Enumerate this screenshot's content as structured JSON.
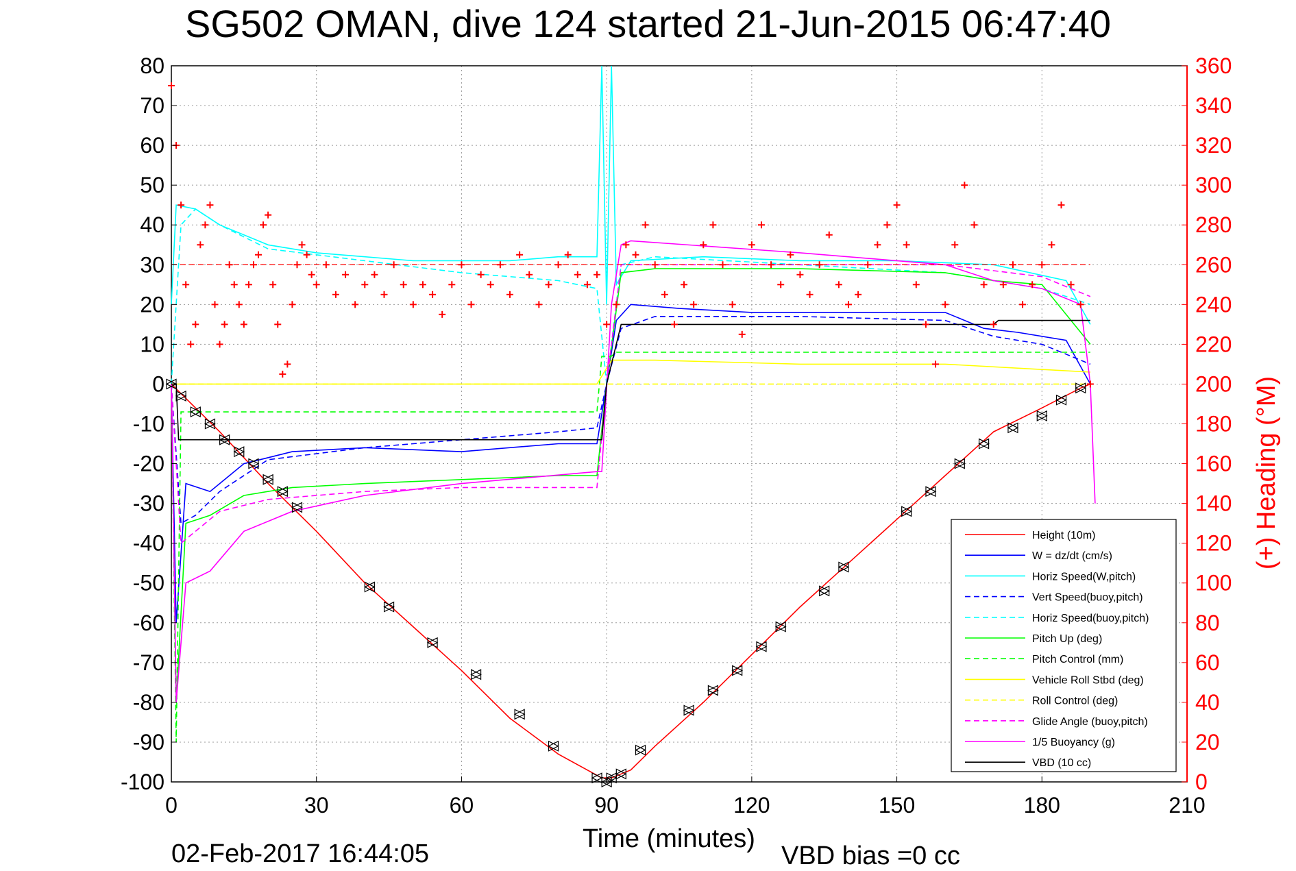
{
  "title": "SG502 OMAN, dive 124 started 21-Jun-2015 06:47:40",
  "footer": {
    "timestamp": "02-Feb-2017 16:44:05",
    "vbd_bias": "VBD bias =0 cc"
  },
  "colors": {
    "heading": "#ff0000",
    "height": "#ff0000",
    "w": "#0000ff",
    "horiz_speed": "#00ffff",
    "pitch": "#00ff00",
    "roll": "#ffff00",
    "glide": "#ff00ff",
    "vbd": "#000000"
  },
  "chart_data": {
    "type": "line",
    "title": "SG502 OMAN, dive 124 started 21-Jun-2015 06:47:40",
    "xlabel": "Time (minutes)",
    "ylabel": "",
    "y2label": "(+) Heading (°M)",
    "xlim": [
      0,
      210
    ],
    "ylim": [
      -100,
      80
    ],
    "y2lim": [
      0,
      360
    ],
    "xticks": [
      0,
      30,
      60,
      90,
      120,
      150,
      180,
      210
    ],
    "yticks": [
      80,
      70,
      60,
      50,
      40,
      30,
      20,
      10,
      0,
      -10,
      -20,
      -30,
      -40,
      -50,
      -60,
      -70,
      -80,
      -90,
      -100
    ],
    "y2ticks": [
      360,
      340,
      320,
      300,
      280,
      260,
      240,
      220,
      200,
      180,
      160,
      140,
      120,
      100,
      80,
      60,
      40,
      20,
      0
    ],
    "grid": true,
    "legend_position": "bottom-right",
    "series": [
      {
        "name": "Height (10m)",
        "style": "solid",
        "color": "#ff0000",
        "x": [
          0,
          10,
          20,
          30,
          40,
          50,
          60,
          70,
          80,
          89,
          91,
          95,
          100,
          110,
          120,
          130,
          140,
          150,
          160,
          170,
          180,
          188,
          190
        ],
        "y": [
          0,
          -12,
          -25,
          -37,
          -50,
          -61,
          -72,
          -84,
          -93,
          -99,
          -99,
          -97,
          -91,
          -80,
          -68,
          -56,
          -45,
          -34,
          -23,
          -12,
          -6,
          -1,
          0
        ]
      },
      {
        "name": "W = dz/dt (cm/s)",
        "style": "solid",
        "color": "#0000ff",
        "x": [
          0,
          1,
          3,
          8,
          15,
          25,
          40,
          60,
          80,
          88,
          90,
          92,
          95,
          105,
          120,
          140,
          160,
          168,
          175,
          185,
          190
        ],
        "y": [
          0,
          -60,
          -25,
          -27,
          -20,
          -17,
          -16,
          -17,
          -15,
          -15,
          0,
          16,
          20,
          19,
          18,
          18,
          18,
          14,
          13,
          11,
          0
        ]
      },
      {
        "name": "Horiz Speed(W,pitch)",
        "style": "solid",
        "color": "#00ffff",
        "x": [
          0,
          1,
          5,
          10,
          20,
          30,
          50,
          70,
          80,
          88,
          89,
          90,
          91,
          92,
          95,
          110,
          130,
          150,
          170,
          185,
          190
        ],
        "y": [
          20,
          45,
          44,
          40,
          35,
          33,
          31,
          31,
          32,
          32,
          80,
          20,
          80,
          25,
          31,
          32,
          31,
          31,
          30,
          26,
          15
        ]
      },
      {
        "name": "Vert Speed(buoy,pitch)",
        "style": "dashed",
        "color": "#0000ff",
        "x": [
          0,
          2,
          5,
          10,
          20,
          40,
          60,
          80,
          88,
          90,
          93,
          100,
          130,
          160,
          170,
          180,
          190
        ],
        "y": [
          0,
          -35,
          -33,
          -27,
          -19,
          -16,
          -14,
          -12,
          -11,
          0,
          14,
          17,
          17,
          16,
          12,
          10,
          5
        ]
      },
      {
        "name": "Horiz Speed(buoy,pitch)",
        "style": "dashed",
        "color": "#00ffff",
        "x": [
          0,
          2,
          5,
          10,
          20,
          40,
          60,
          80,
          88,
          90,
          93,
          100,
          130,
          160,
          170,
          180,
          190
        ],
        "y": [
          0,
          40,
          44,
          40,
          34,
          31,
          28,
          26,
          24,
          0,
          30,
          32,
          30,
          28,
          26,
          24,
          20
        ]
      },
      {
        "name": "Pitch Up (deg)",
        "style": "solid",
        "color": "#00ff00",
        "x": [
          0,
          1,
          3,
          8,
          15,
          25,
          40,
          60,
          80,
          88,
          90,
          93,
          100,
          130,
          160,
          170,
          180,
          190
        ],
        "y": [
          0,
          -80,
          -35,
          -33,
          -28,
          -26,
          -25,
          -24,
          -23,
          -23,
          0,
          28,
          29,
          29,
          28,
          26,
          25,
          10
        ]
      },
      {
        "name": "Pitch Control (mm)",
        "style": "dashed",
        "color": "#00ff00",
        "x": [
          0,
          1,
          2,
          30,
          88,
          89,
          91,
          92,
          190
        ],
        "y": [
          0,
          -90,
          -7,
          -7,
          -7,
          7,
          7,
          8,
          8
        ]
      },
      {
        "name": "Vehicle Roll Stbd (deg)",
        "style": "solid",
        "color": "#ffff00",
        "x": [
          0,
          5,
          10,
          30,
          60,
          88,
          91,
          100,
          130,
          160,
          190
        ],
        "y": [
          0,
          0,
          0,
          0,
          0,
          0,
          6,
          6,
          5,
          5,
          3
        ]
      },
      {
        "name": "Roll Control (deg)",
        "style": "dashed",
        "color": "#ffff00",
        "x": [
          0,
          5,
          30,
          60,
          88,
          91,
          130,
          190
        ],
        "y": [
          0,
          0,
          0,
          0,
          0,
          0,
          0,
          0
        ]
      },
      {
        "name": "Glide Angle (buoy,pitch)",
        "style": "dashed",
        "color": "#ff00ff",
        "x": [
          0,
          2,
          10,
          20,
          40,
          60,
          88,
          90,
          93,
          130,
          160,
          180,
          190
        ],
        "y": [
          0,
          -40,
          -32,
          -29,
          -27,
          -26,
          -26,
          0,
          30,
          30,
          30,
          27,
          22
        ]
      },
      {
        "name": "1/5 Buoyancy (g)",
        "style": "solid",
        "color": "#ff00ff",
        "x": [
          0,
          1,
          3,
          8,
          15,
          25,
          40,
          60,
          88,
          89,
          91,
          93,
          95,
          130,
          160,
          170,
          180,
          188,
          190,
          191
        ],
        "y": [
          0,
          -80,
          -50,
          -47,
          -37,
          -32,
          -28,
          -25,
          -22,
          -22,
          20,
          35,
          36,
          33,
          30,
          26,
          24,
          20,
          0,
          -30
        ]
      },
      {
        "name": "VBD (10 cc)",
        "style": "solid",
        "color": "#000000",
        "x": [
          0,
          1,
          1.5,
          89,
          90,
          93,
          94,
          170,
          171,
          190
        ],
        "y": [
          0,
          0,
          -14,
          -14,
          0,
          15,
          15,
          15,
          16,
          16
        ]
      }
    ],
    "heading": {
      "name": "(+) Heading (°M)",
      "color": "#ff0000",
      "reference": 260,
      "x": [
        0,
        1,
        2,
        3,
        4,
        5,
        6,
        7,
        8,
        9,
        10,
        11,
        12,
        13,
        14,
        15,
        16,
        17,
        18,
        19,
        20,
        21,
        22,
        23,
        24,
        25,
        26,
        27,
        28,
        29,
        30,
        32,
        34,
        36,
        38,
        40,
        42,
        44,
        46,
        48,
        50,
        52,
        54,
        56,
        58,
        60,
        62,
        64,
        66,
        68,
        70,
        72,
        74,
        76,
        78,
        80,
        82,
        84,
        86,
        88,
        90,
        92,
        94,
        96,
        98,
        100,
        102,
        104,
        106,
        108,
        110,
        112,
        114,
        116,
        118,
        120,
        122,
        124,
        126,
        128,
        130,
        132,
        134,
        136,
        138,
        140,
        142,
        144,
        146,
        148,
        150,
        152,
        154,
        156,
        158,
        160,
        162,
        164,
        166,
        168,
        170,
        172,
        174,
        176,
        178,
        180,
        182,
        184,
        186,
        188,
        190
      ],
      "y": [
        350,
        320,
        290,
        250,
        220,
        230,
        270,
        280,
        290,
        240,
        220,
        230,
        260,
        250,
        240,
        230,
        250,
        260,
        265,
        280,
        285,
        250,
        230,
        205,
        210,
        240,
        260,
        270,
        265,
        255,
        250,
        260,
        245,
        255,
        240,
        250,
        255,
        245,
        260,
        250,
        240,
        250,
        245,
        235,
        250,
        260,
        240,
        255,
        250,
        260,
        245,
        265,
        255,
        240,
        250,
        260,
        265,
        255,
        250,
        255,
        230,
        240,
        270,
        265,
        280,
        260,
        245,
        230,
        250,
        240,
        270,
        280,
        260,
        240,
        225,
        270,
        280,
        260,
        250,
        265,
        255,
        245,
        260,
        275,
        250,
        240,
        245,
        260,
        270,
        280,
        290,
        270,
        250,
        230,
        210,
        240,
        270,
        300,
        280,
        250,
        230,
        250,
        260,
        240,
        250,
        260,
        270,
        290,
        250,
        240,
        200
      ]
    },
    "height_markers": {
      "x": [
        0,
        2,
        5,
        8,
        11,
        14,
        17,
        20,
        23,
        26,
        41,
        45,
        54,
        63,
        72,
        79,
        88,
        90,
        91,
        93,
        97,
        107,
        112,
        117,
        122,
        126,
        135,
        139,
        152,
        157,
        163,
        168,
        174,
        180,
        184,
        188
      ],
      "y": [
        0,
        -3,
        -7,
        -10,
        -14,
        -17,
        -20,
        -24,
        -27,
        -31,
        -51,
        -56,
        -65,
        -73,
        -83,
        -91,
        -99,
        -100,
        -99,
        -98,
        -92,
        -82,
        -77,
        -72,
        -66,
        -61,
        -52,
        -46,
        -32,
        -27,
        -20,
        -15,
        -11,
        -8,
        -4,
        -1
      ]
    }
  }
}
